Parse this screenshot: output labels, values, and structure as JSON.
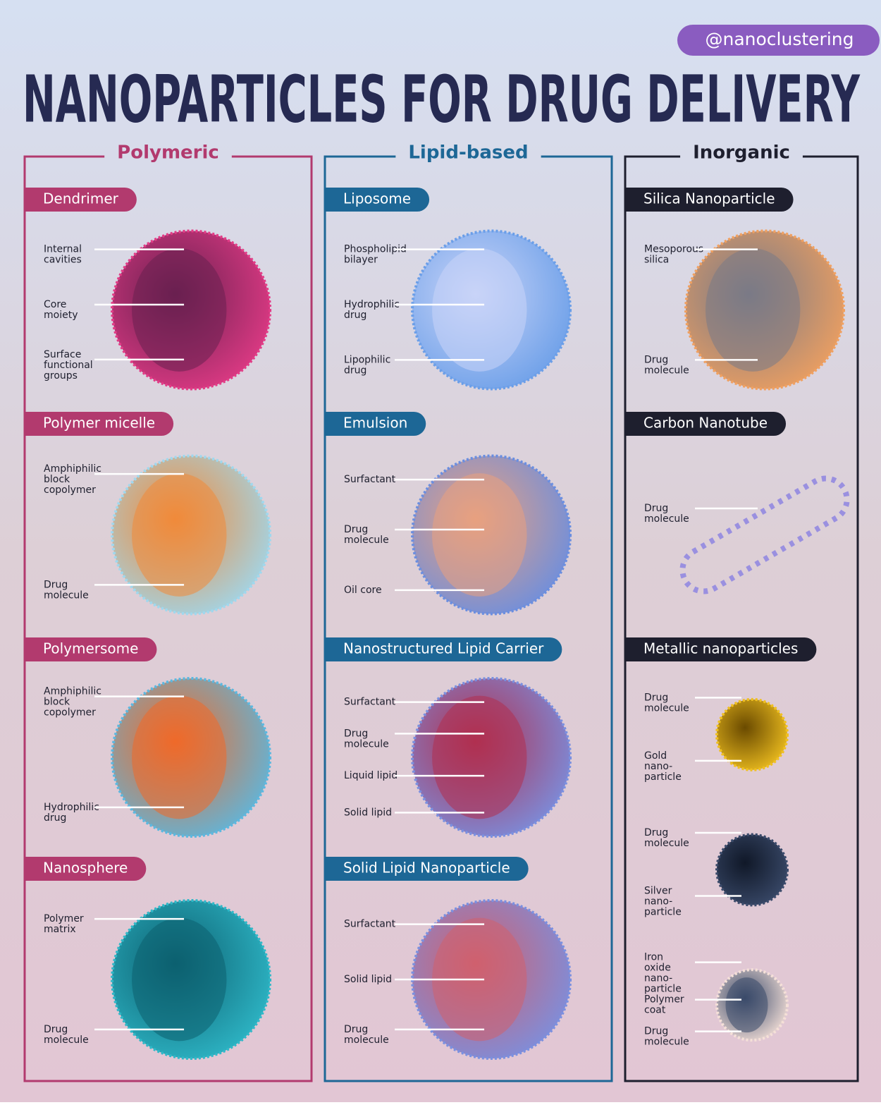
{
  "handle": "@nanoclustering",
  "title": "NANOPARTICLES FOR DRUG DELIVERY",
  "columns": [
    {
      "title": "Polymeric",
      "items": [
        {
          "name": "Dendrimer",
          "labels": [
            [
              "Internal",
              "cavities"
            ],
            [
              "Core",
              "moiety"
            ],
            [
              "Surface",
              "functional",
              "groups"
            ]
          ]
        },
        {
          "name": "Polymer micelle",
          "labels": [
            [
              "Amphiphilic",
              "block",
              "copolymer"
            ],
            [
              "Drug",
              "molecule"
            ]
          ]
        },
        {
          "name": "Polymersome",
          "labels": [
            [
              "Amphiphilic",
              "block",
              "copolymer"
            ],
            [
              "Hydrophilic",
              "drug"
            ]
          ]
        },
        {
          "name": "Nanosphere",
          "labels": [
            [
              "Polymer",
              "matrix"
            ],
            [
              "Drug",
              "molecule"
            ]
          ]
        }
      ]
    },
    {
      "title": "Lipid-based",
      "items": [
        {
          "name": "Liposome",
          "labels": [
            [
              "Phospholipid",
              "bilayer"
            ],
            [
              "Hydrophilic",
              "drug"
            ],
            [
              "Lipophilic",
              "drug"
            ]
          ]
        },
        {
          "name": "Emulsion",
          "labels": [
            [
              "Surfactant"
            ],
            [
              "Drug",
              "molecule"
            ],
            [
              "Oil core"
            ]
          ]
        },
        {
          "name": "Nanostructured Lipid Carrier",
          "labels": [
            [
              "Surfactant"
            ],
            [
              "Drug",
              "molecule"
            ],
            [
              "Liquid lipid"
            ],
            [
              "Solid lipid"
            ]
          ]
        },
        {
          "name": "Solid Lipid Nanoparticle",
          "labels": [
            [
              "Surfactant"
            ],
            [
              "Solid lipid"
            ],
            [
              "Drug",
              "molecule"
            ]
          ]
        }
      ]
    },
    {
      "title": "Inorganic",
      "items": [
        {
          "name": "Silica Nanoparticle",
          "labels": [
            [
              "Mesoporous",
              "silica"
            ],
            [
              "Drug",
              "molecule"
            ]
          ]
        },
        {
          "name": "Carbon Nanotube",
          "labels": [
            [
              "Drug",
              "molecule"
            ]
          ]
        },
        {
          "name": "Metallic nanoparticles",
          "groups": [
            [
              [
                "Drug",
                "molecule"
              ],
              [
                "Gold",
                "nano-",
                "particle"
              ]
            ],
            [
              [
                "Drug",
                "molecule"
              ],
              [
                "Silver",
                "nano-",
                "particle"
              ]
            ],
            [
              [
                "Iron",
                "oxide",
                "nano-",
                "particle"
              ],
              [
                "Polymer",
                "coat"
              ],
              [
                "Drug",
                "molecule"
              ]
            ]
          ]
        }
      ]
    }
  ]
}
